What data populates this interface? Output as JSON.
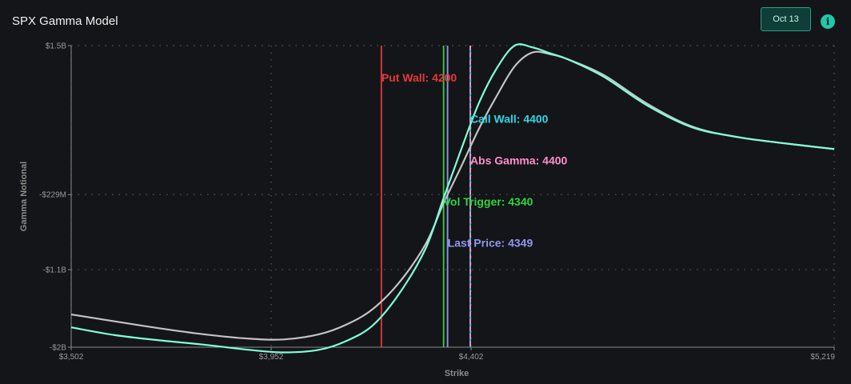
{
  "header": {
    "title": "SPX Gamma Model",
    "date_button": "Oct 13",
    "info_icon": "info-icon"
  },
  "chart_data": {
    "type": "line",
    "title": "SPX Gamma Model",
    "xlabel": "Strike",
    "ylabel": "Gamma Notional",
    "xlim": [
      3502,
      5219
    ],
    "ylim": [
      -2000,
      1500
    ],
    "x_ticks": [
      {
        "value": 3502,
        "label": "$3,502"
      },
      {
        "value": 3952,
        "label": "$3,952"
      },
      {
        "value": 4402,
        "label": "$4,402"
      },
      {
        "value": 5219,
        "label": "$5,219"
      }
    ],
    "y_ticks": [
      {
        "value": 1500,
        "label": "$1.5B"
      },
      {
        "value": -229,
        "label": "-$229M"
      },
      {
        "value": -1100,
        "label": "-$1.1B"
      },
      {
        "value": -2000,
        "label": "-$2B"
      }
    ],
    "grid": true,
    "series": [
      {
        "color": "#c3c3c3",
        "x": [
          3502,
          3600,
          3700,
          3800,
          3900,
          3980,
          4060,
          4120,
          4180,
          4240,
          4300,
          4340,
          4380,
          4420,
          4460,
          4500,
          4540,
          4580,
          4620,
          4700,
          4800,
          4900,
          5000,
          5100,
          5219
        ],
        "y": [
          -1620,
          -1700,
          -1780,
          -1850,
          -1900,
          -1910,
          -1850,
          -1740,
          -1560,
          -1250,
          -800,
          -330,
          100,
          540,
          920,
          1260,
          1420,
          1400,
          1340,
          1160,
          820,
          560,
          440,
          370,
          300
        ]
      },
      {
        "color": "#7fffd8",
        "x": [
          3502,
          3600,
          3700,
          3800,
          3900,
          3980,
          4060,
          4120,
          4180,
          4240,
          4300,
          4340,
          4380,
          4420,
          4460,
          4500,
          4540,
          4580,
          4620,
          4700,
          4800,
          4900,
          5000,
          5100,
          5219
        ],
        "y": [
          -1770,
          -1860,
          -1920,
          -1970,
          -2030,
          -2060,
          -2030,
          -1930,
          -1750,
          -1380,
          -850,
          -270,
          300,
          840,
          1240,
          1500,
          1480,
          1410,
          1340,
          1140,
          800,
          550,
          440,
          370,
          300
        ]
      }
    ],
    "markers": [
      {
        "label": "Put Wall: 4200",
        "x": 4200,
        "color": "#e5383b",
        "label_y": 1130,
        "dashed": false
      },
      {
        "label": "Call Wall: 4400",
        "x": 4400,
        "color": "#2fd6e6",
        "label_y": 650,
        "dashed": false
      },
      {
        "label": "Abs Gamma: 4400",
        "x": 4400,
        "color": "#ff8fc9",
        "label_y": 170,
        "dashed": true
      },
      {
        "label": "Vol Trigger: 4340",
        "x": 4340,
        "color": "#30d33d",
        "label_y": -310,
        "dashed": false
      },
      {
        "label": "Last Price: 4349",
        "x": 4349,
        "color": "#8f97f0",
        "label_y": -790,
        "dashed": false
      }
    ]
  }
}
